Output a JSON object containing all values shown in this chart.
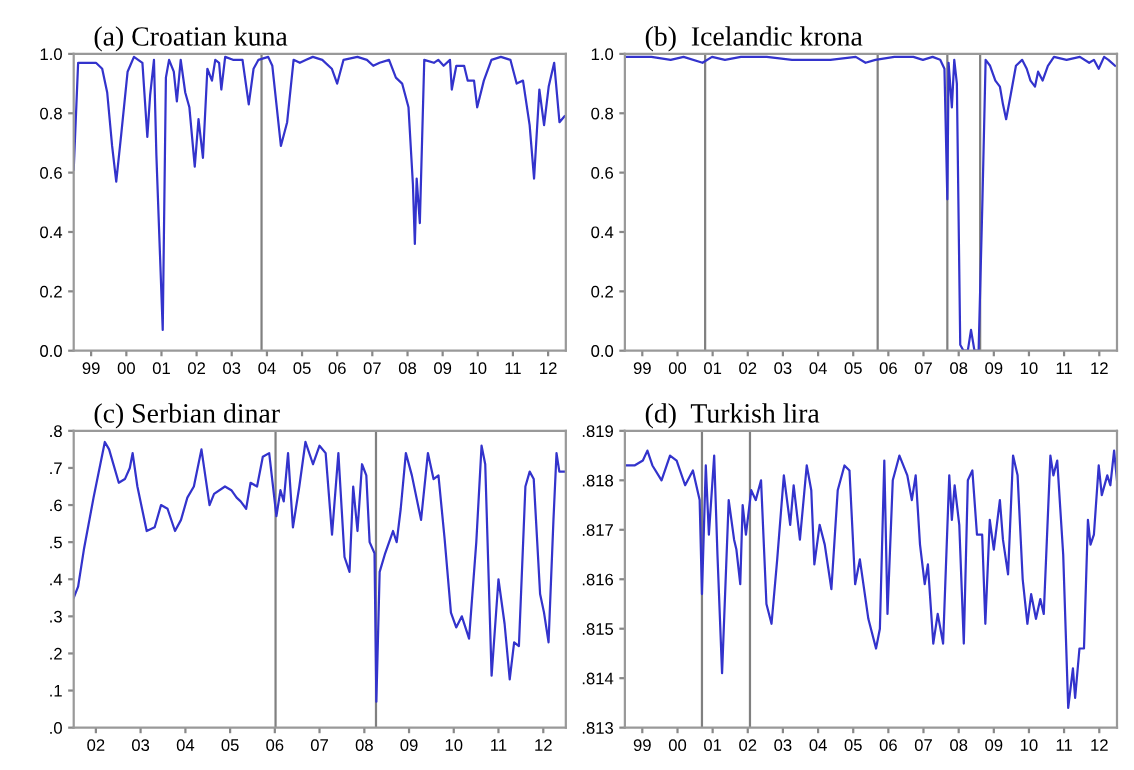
{
  "chart_data": [
    {
      "type": "line",
      "title": "(a) Croatian kuna",
      "xlim": [
        "1999-01",
        "2013-01"
      ],
      "ylim": [
        0,
        1
      ],
      "yticks": [
        {
          "value": 0,
          "label": "0.0"
        },
        {
          "value": 0.2,
          "label": "0.2"
        },
        {
          "value": 0.4,
          "label": "0.4"
        },
        {
          "value": 0.6,
          "label": "0.6"
        },
        {
          "value": 0.8,
          "label": "0.8"
        },
        {
          "value": 1,
          "label": "1.0"
        }
      ],
      "xticks": [
        {
          "value": "1999-07",
          "label": "99"
        },
        {
          "value": "2000-07",
          "label": "00"
        },
        {
          "value": "2001-07",
          "label": "01"
        },
        {
          "value": "2002-07",
          "label": "02"
        },
        {
          "value": "2003-07",
          "label": "03"
        },
        {
          "value": "2004-07",
          "label": "04"
        },
        {
          "value": "2005-07",
          "label": "05"
        },
        {
          "value": "2006-07",
          "label": "06"
        },
        {
          "value": "2007-07",
          "label": "07"
        },
        {
          "value": "2008-07",
          "label": "08"
        },
        {
          "value": "2009-07",
          "label": "09"
        },
        {
          "value": "2010-07",
          "label": "10"
        },
        {
          "value": "2011-07",
          "label": "11"
        },
        {
          "value": "2012-07",
          "label": "12"
        }
      ],
      "grid": false,
      "marker": "none",
      "line_style": "solid",
      "ref_lines": [
        {
          "axis": "x",
          "value": "2004-05-06",
          "label": null,
          "color": "#808080"
        }
      ],
      "series": [
        {
          "color": "#3333cc",
          "x": [
            "1999-01-01",
            "1999-02-16",
            "1999-08-20",
            "1999-10-24",
            "1999-12-15",
            "2000-02-04",
            "2000-03-18",
            "2000-05-09",
            "2000-07-14",
            "2000-09-18",
            "2000-12-15",
            "2001-02-04",
            "2001-03-05",
            "2001-04-14",
            "2001-05-09",
            "2001-07-14",
            "2001-08-16",
            "2001-09-18",
            "2001-11-06",
            "2001-12-08",
            "2002-01-17",
            "2002-03-05",
            "2002-04-17",
            "2002-06-12",
            "2002-07-21",
            "2002-09-05",
            "2002-10-21",
            "2002-12-08",
            "2003-01-11",
            "2003-02-20",
            "2003-03-15",
            "2003-04-24",
            "2003-07-14",
            "2003-10-21",
            "2003-12-25",
            "2004-02-13",
            "2004-04-04",
            "2004-07-14",
            "2004-08-26",
            "2004-11-23",
            "2005-01-27",
            "2005-04-04",
            "2005-06-08",
            "2005-08-13",
            "2005-10-21",
            "2006-01-27",
            "2006-05-06",
            "2006-07-01",
            "2006-09-05",
            "2007-01-27",
            "2007-05-06",
            "2007-07-11",
            "2007-09-15",
            "2007-12-22",
            "2008-03-02",
            "2008-05-06",
            "2008-07-11",
            "2008-08-26",
            "2008-09-15",
            "2008-10-04",
            "2008-11-06",
            "2008-12-22",
            "2009-04-01",
            "2009-05-16",
            "2009-07-11",
            "2009-09-15",
            "2009-10-04",
            "2009-11-20",
            "2010-02-09",
            "2010-03-18",
            "2010-05-23",
            "2010-06-25",
            "2010-09-02",
            "2010-11-20",
            "2011-02-26",
            "2011-06-05",
            "2011-08-09",
            "2011-10-14",
            "2011-12-22",
            "2012-02-06",
            "2012-04-01",
            "2012-05-20",
            "2012-07-07",
            "2012-09-02",
            "2012-10-27",
            "2012-12-18"
          ],
          "values": [
            0.61,
            0.97,
            0.97,
            0.95,
            0.87,
            0.69,
            0.57,
            0.73,
            0.94,
            0.99,
            0.97,
            0.72,
            0.86,
            0.98,
            0.66,
            0.07,
            0.92,
            0.98,
            0.94,
            0.84,
            0.98,
            0.87,
            0.82,
            0.62,
            0.78,
            0.65,
            0.95,
            0.91,
            0.98,
            0.97,
            0.88,
            0.99,
            0.98,
            0.98,
            0.83,
            0.95,
            0.98,
            0.99,
            0.96,
            0.69,
            0.77,
            0.98,
            0.97,
            0.98,
            0.99,
            0.98,
            0.95,
            0.9,
            0.98,
            0.99,
            0.98,
            0.96,
            0.97,
            0.98,
            0.92,
            0.9,
            0.82,
            0.56,
            0.36,
            0.58,
            0.43,
            0.98,
            0.97,
            0.98,
            0.96,
            0.98,
            0.88,
            0.96,
            0.96,
            0.91,
            0.91,
            0.82,
            0.91,
            0.98,
            0.99,
            0.98,
            0.9,
            0.91,
            0.76,
            0.58,
            0.88,
            0.76,
            0.89,
            0.97,
            0.77,
            0.79
          ]
        }
      ]
    },
    {
      "type": "line",
      "title": "(b)  Icelandic krona",
      "xlim": [
        "1999-01",
        "2013-01"
      ],
      "ylim": [
        0,
        1
      ],
      "yticks": [
        {
          "value": 0,
          "label": "0.0"
        },
        {
          "value": 0.2,
          "label": "0.2"
        },
        {
          "value": 0.4,
          "label": "0.4"
        },
        {
          "value": 0.6,
          "label": "0.6"
        },
        {
          "value": 0.8,
          "label": "0.8"
        },
        {
          "value": 1,
          "label": "1.0"
        }
      ],
      "xticks": [
        {
          "value": "1999-07",
          "label": "99"
        },
        {
          "value": "2000-07",
          "label": "00"
        },
        {
          "value": "2001-07",
          "label": "01"
        },
        {
          "value": "2002-07",
          "label": "02"
        },
        {
          "value": "2003-07",
          "label": "03"
        },
        {
          "value": "2004-07",
          "label": "04"
        },
        {
          "value": "2005-07",
          "label": "05"
        },
        {
          "value": "2006-07",
          "label": "06"
        },
        {
          "value": "2007-07",
          "label": "07"
        },
        {
          "value": "2008-07",
          "label": "08"
        },
        {
          "value": "2009-07",
          "label": "09"
        },
        {
          "value": "2010-07",
          "label": "10"
        },
        {
          "value": "2011-07",
          "label": "11"
        },
        {
          "value": "2012-07",
          "label": "12"
        }
      ],
      "grid": false,
      "marker": "none",
      "line_style": "solid",
      "ref_lines": [
        {
          "axis": "x",
          "value": "2001-04-14",
          "label": null,
          "color": "#808080"
        },
        {
          "axis": "x",
          "value": "2006-03-12",
          "label": null,
          "color": "#808080"
        },
        {
          "axis": "x",
          "value": "2008-03-05",
          "label": null,
          "color": "#808080"
        },
        {
          "axis": "x",
          "value": "2009-02-09",
          "label": null,
          "color": "#808080"
        }
      ],
      "series": [
        {
          "color": "#3333cc",
          "x": [
            "1999-01-01",
            "1999-10-04",
            "2000-04-21",
            "2000-09-02",
            "2001-03-18",
            "2001-06-25",
            "2001-11-06",
            "2002-04-21",
            "2003-01-14",
            "2003-10-04",
            "2004-11-06",
            "2005-07-27",
            "2005-11-06",
            "2006-02-16",
            "2006-09-02",
            "2007-03-18",
            "2007-06-25",
            "2007-10-04",
            "2007-12-22",
            "2008-02-04",
            "2008-03-05",
            "2008-03-18",
            "2008-04-21",
            "2008-05-16",
            "2008-06-12",
            "2008-07-17",
            "2008-08-20",
            "2008-10-04",
            "2008-11-06",
            "2008-12-12",
            "2009-01-24",
            "2009-03-05",
            "2009-04-07",
            "2009-05-23",
            "2009-07-17",
            "2009-09-02",
            "2009-10-04",
            "2009-11-06",
            "2009-12-22",
            "2010-02-16",
            "2010-04-21",
            "2010-06-08",
            "2010-07-17",
            "2010-09-02",
            "2010-10-04",
            "2010-11-20",
            "2011-01-14",
            "2011-03-18",
            "2011-07-27",
            "2011-12-12",
            "2012-03-18",
            "2012-05-06",
            "2012-06-25",
            "2012-08-20",
            "2012-10-04",
            "2012-12-12"
          ],
          "values": [
            0.99,
            0.99,
            0.98,
            0.99,
            0.97,
            0.99,
            0.98,
            0.99,
            0.99,
            0.98,
            0.98,
            0.99,
            0.97,
            0.98,
            0.99,
            0.99,
            0.98,
            0.99,
            0.98,
            0.95,
            0.51,
            0.97,
            0.82,
            0.98,
            0.9,
            0.02,
            0.0,
            0.0,
            0.07,
            0.0,
            0.0,
            0.51,
            0.98,
            0.96,
            0.91,
            0.89,
            0.83,
            0.78,
            0.86,
            0.96,
            0.98,
            0.95,
            0.91,
            0.89,
            0.94,
            0.91,
            0.96,
            0.99,
            0.98,
            0.99,
            0.97,
            0.98,
            0.95,
            0.99,
            0.98,
            0.96
          ]
        }
      ]
    },
    {
      "type": "line",
      "title": "(c) Serbian dinar",
      "xlim": [
        "2002-01",
        "2013-01"
      ],
      "ylim": [
        0,
        0.8
      ],
      "yticks": [
        {
          "value": 0,
          "label": ".0"
        },
        {
          "value": 0.1,
          "label": ".1"
        },
        {
          "value": 0.2,
          "label": ".2"
        },
        {
          "value": 0.3,
          "label": ".3"
        },
        {
          "value": 0.4,
          "label": ".4"
        },
        {
          "value": 0.5,
          "label": ".5"
        },
        {
          "value": 0.6,
          "label": ".6"
        },
        {
          "value": 0.7,
          "label": ".7"
        },
        {
          "value": 0.8,
          "label": ".8"
        }
      ],
      "xticks": [
        {
          "value": "2002-07",
          "label": "02"
        },
        {
          "value": "2003-07",
          "label": "03"
        },
        {
          "value": "2004-07",
          "label": "04"
        },
        {
          "value": "2005-07",
          "label": "05"
        },
        {
          "value": "2006-07",
          "label": "06"
        },
        {
          "value": "2007-07",
          "label": "07"
        },
        {
          "value": "2008-07",
          "label": "08"
        },
        {
          "value": "2009-07",
          "label": "09"
        },
        {
          "value": "2010-07",
          "label": "10"
        },
        {
          "value": "2011-07",
          "label": "11"
        },
        {
          "value": "2012-07",
          "label": "12"
        }
      ],
      "grid": false,
      "marker": "none",
      "line_style": "solid",
      "ref_lines": [
        {
          "axis": "x",
          "value": "2006-07-07",
          "label": null,
          "color": "#808080"
        },
        {
          "axis": "x",
          "value": "2008-10-04",
          "label": null,
          "color": "#808080"
        }
      ],
      "series": [
        {
          "color": "#3333cc",
          "x": [
            "2002-01-01",
            "2002-02-06",
            "2002-03-25",
            "2002-06-12",
            "2002-09-12",
            "2002-10-17",
            "2003-01-04",
            "2003-02-23",
            "2003-04-04",
            "2003-04-27",
            "2003-06-05",
            "2003-08-20",
            "2003-10-24",
            "2003-12-15",
            "2004-02-06",
            "2004-04-07",
            "2004-05-26",
            "2004-07-17",
            "2004-09-08",
            "2004-11-09",
            "2005-01-14",
            "2005-02-20",
            "2005-05-20",
            "2005-07-11",
            "2005-08-23",
            "2005-09-25",
            "2005-11-09",
            "2005-12-15",
            "2006-02-06",
            "2006-03-25",
            "2006-05-16",
            "2006-07-14",
            "2006-08-16",
            "2006-09-12",
            "2006-10-17",
            "2006-11-26",
            "2007-01-17",
            "2007-03-08",
            "2007-05-09",
            "2007-07-01",
            "2007-08-20",
            "2007-10-11",
            "2007-12-02",
            "2008-01-21",
            "2008-03-02",
            "2008-04-01",
            "2008-05-06",
            "2008-06-12",
            "2008-07-17",
            "2008-08-13",
            "2008-09-22",
            "2008-10-07",
            "2008-11-03",
            "2008-12-18",
            "2009-02-20",
            "2009-03-22",
            "2009-04-24",
            "2009-06-05",
            "2009-07-24",
            "2009-10-07",
            "2009-12-02",
            "2010-01-17",
            "2010-02-26",
            "2010-04-17",
            "2010-06-08",
            "2010-07-21",
            "2010-09-05",
            "2010-11-03",
            "2011-01-01",
            "2011-02-13",
            "2011-03-15",
            "2011-05-06",
            "2011-07-01",
            "2011-08-20",
            "2011-10-01",
            "2011-11-06",
            "2011-12-15",
            "2012-02-06",
            "2012-03-12",
            "2012-04-14",
            "2012-06-05",
            "2012-07-07",
            "2012-08-13",
            "2012-09-22",
            "2012-10-17",
            "2012-11-09",
            "2012-12-18"
          ],
          "values": [
            0.35,
            0.38,
            0.48,
            0.62,
            0.77,
            0.75,
            0.66,
            0.67,
            0.7,
            0.74,
            0.65,
            0.53,
            0.54,
            0.6,
            0.59,
            0.53,
            0.56,
            0.62,
            0.65,
            0.75,
            0.6,
            0.63,
            0.65,
            0.64,
            0.62,
            0.61,
            0.59,
            0.66,
            0.65,
            0.73,
            0.74,
            0.57,
            0.64,
            0.61,
            0.74,
            0.54,
            0.65,
            0.77,
            0.71,
            0.76,
            0.74,
            0.52,
            0.74,
            0.46,
            0.42,
            0.65,
            0.53,
            0.71,
            0.68,
            0.5,
            0.47,
            0.07,
            0.42,
            0.47,
            0.53,
            0.5,
            0.59,
            0.74,
            0.68,
            0.56,
            0.74,
            0.67,
            0.68,
            0.51,
            0.31,
            0.27,
            0.3,
            0.24,
            0.5,
            0.76,
            0.71,
            0.14,
            0.4,
            0.28,
            0.13,
            0.23,
            0.22,
            0.65,
            0.69,
            0.67,
            0.36,
            0.31,
            0.23,
            0.56,
            0.74,
            0.69,
            0.69
          ]
        }
      ]
    },
    {
      "type": "line",
      "title": "(d)  Turkish lira",
      "xlim": [
        "1999-01",
        "2013-01"
      ],
      "ylim": [
        0.813,
        0.819
      ],
      "yticks": [
        {
          "value": 0.813,
          "label": ".813"
        },
        {
          "value": 0.814,
          "label": ".814"
        },
        {
          "value": 0.815,
          "label": ".815"
        },
        {
          "value": 0.816,
          "label": ".816"
        },
        {
          "value": 0.817,
          "label": ".817"
        },
        {
          "value": 0.818,
          "label": ".818"
        },
        {
          "value": 0.819,
          "label": ".819"
        }
      ],
      "xticks": [
        {
          "value": "1999-07",
          "label": "99"
        },
        {
          "value": "2000-07",
          "label": "00"
        },
        {
          "value": "2001-07",
          "label": "01"
        },
        {
          "value": "2002-07",
          "label": "02"
        },
        {
          "value": "2003-07",
          "label": "03"
        },
        {
          "value": "2004-07",
          "label": "04"
        },
        {
          "value": "2005-07",
          "label": "05"
        },
        {
          "value": "2006-07",
          "label": "06"
        },
        {
          "value": "2007-07",
          "label": "07"
        },
        {
          "value": "2008-07",
          "label": "08"
        },
        {
          "value": "2009-07",
          "label": "09"
        },
        {
          "value": "2010-07",
          "label": "10"
        },
        {
          "value": "2011-07",
          "label": "11"
        },
        {
          "value": "2012-07",
          "label": "12"
        }
      ],
      "grid": false,
      "marker": "none",
      "line_style": "solid",
      "ref_lines": [
        {
          "axis": "x",
          "value": "2001-03-12",
          "label": null,
          "color": "#808080"
        },
        {
          "axis": "x",
          "value": "2002-07-24",
          "label": null,
          "color": "#808080"
        }
      ],
      "series": [
        {
          "color": "#3333cc",
          "x": [
            "1999-01-01",
            "1999-04-11",
            "1999-07-07",
            "1999-08-23",
            "1999-10-14",
            "2000-01-17",
            "2000-04-14",
            "2000-06-22",
            "2000-09-18",
            "2000-12-08",
            "2001-02-16",
            "2001-03-12",
            "2001-04-21",
            "2001-05-23",
            "2001-07-17",
            "2001-08-20",
            "2001-10-07",
            "2001-12-15",
            "2002-02-09",
            "2002-03-05",
            "2002-04-14",
            "2002-05-09",
            "2002-06-12",
            "2002-08-06",
            "2002-09-22",
            "2002-11-16",
            "2003-01-11",
            "2003-03-05",
            "2003-05-03",
            "2003-07-11",
            "2003-09-15",
            "2003-10-21",
            "2003-12-25",
            "2004-03-05",
            "2004-04-21",
            "2004-05-23",
            "2004-07-17",
            "2004-09-08",
            "2004-11-16",
            "2005-01-21",
            "2005-04-01",
            "2005-05-23",
            "2005-07-21",
            "2005-09-08",
            "2005-12-05",
            "2006-02-23",
            "2006-04-04",
            "2006-05-20",
            "2006-06-22",
            "2006-08-16",
            "2006-10-24",
            "2007-01-14",
            "2007-03-02",
            "2007-04-11",
            "2007-05-26",
            "2007-07-14",
            "2007-08-16",
            "2007-10-11",
            "2007-11-26",
            "2008-01-21",
            "2008-03-25",
            "2008-04-21",
            "2008-05-20",
            "2008-07-07",
            "2008-08-23",
            "2008-10-04",
            "2008-11-20",
            "2009-01-07",
            "2009-03-02",
            "2009-04-04",
            "2009-05-20",
            "2009-07-01",
            "2009-09-02",
            "2009-10-04",
            "2009-11-26",
            "2010-01-17",
            "2010-03-05",
            "2010-04-27",
            "2010-06-15",
            "2010-07-24",
            "2010-09-12",
            "2010-10-27",
            "2010-12-02",
            "2011-02-09",
            "2011-03-12",
            "2011-04-21",
            "2011-06-22",
            "2011-08-13",
            "2011-10-01",
            "2011-10-24",
            "2011-12-08",
            "2012-01-24",
            "2012-03-05",
            "2012-04-01",
            "2012-05-06",
            "2012-06-25",
            "2012-07-27",
            "2012-09-22",
            "2012-10-24",
            "2012-12-02",
            "2013-01-01"
          ],
          "values": [
            0.8183,
            0.8183,
            0.8184,
            0.8186,
            0.8183,
            0.818,
            0.8185,
            0.8184,
            0.8179,
            0.8182,
            0.8176,
            0.8157,
            0.8183,
            0.8169,
            0.8185,
            0.8165,
            0.8141,
            0.8176,
            0.8168,
            0.8166,
            0.8159,
            0.8175,
            0.8169,
            0.8178,
            0.8176,
            0.818,
            0.8155,
            0.8151,
            0.8164,
            0.8181,
            0.8171,
            0.8179,
            0.8168,
            0.8183,
            0.8178,
            0.8163,
            0.8171,
            0.8167,
            0.8158,
            0.8178,
            0.8183,
            0.8182,
            0.8159,
            0.8164,
            0.8152,
            0.8146,
            0.815,
            0.8184,
            0.8153,
            0.818,
            0.8185,
            0.8181,
            0.8176,
            0.8181,
            0.8167,
            0.8159,
            0.8163,
            0.8147,
            0.8153,
            0.8147,
            0.8181,
            0.8172,
            0.8179,
            0.8171,
            0.8147,
            0.818,
            0.8182,
            0.8169,
            0.8169,
            0.8151,
            0.8172,
            0.8166,
            0.8176,
            0.8168,
            0.8161,
            0.8185,
            0.8181,
            0.816,
            0.8151,
            0.8157,
            0.8152,
            0.8156,
            0.8153,
            0.8185,
            0.8181,
            0.8184,
            0.8165,
            0.8134,
            0.8142,
            0.8136,
            0.8146,
            0.8146,
            0.8172,
            0.8167,
            0.8169,
            0.8183,
            0.8177,
            0.8181,
            0.8179,
            0.8186,
            0.818
          ]
        }
      ]
    }
  ]
}
